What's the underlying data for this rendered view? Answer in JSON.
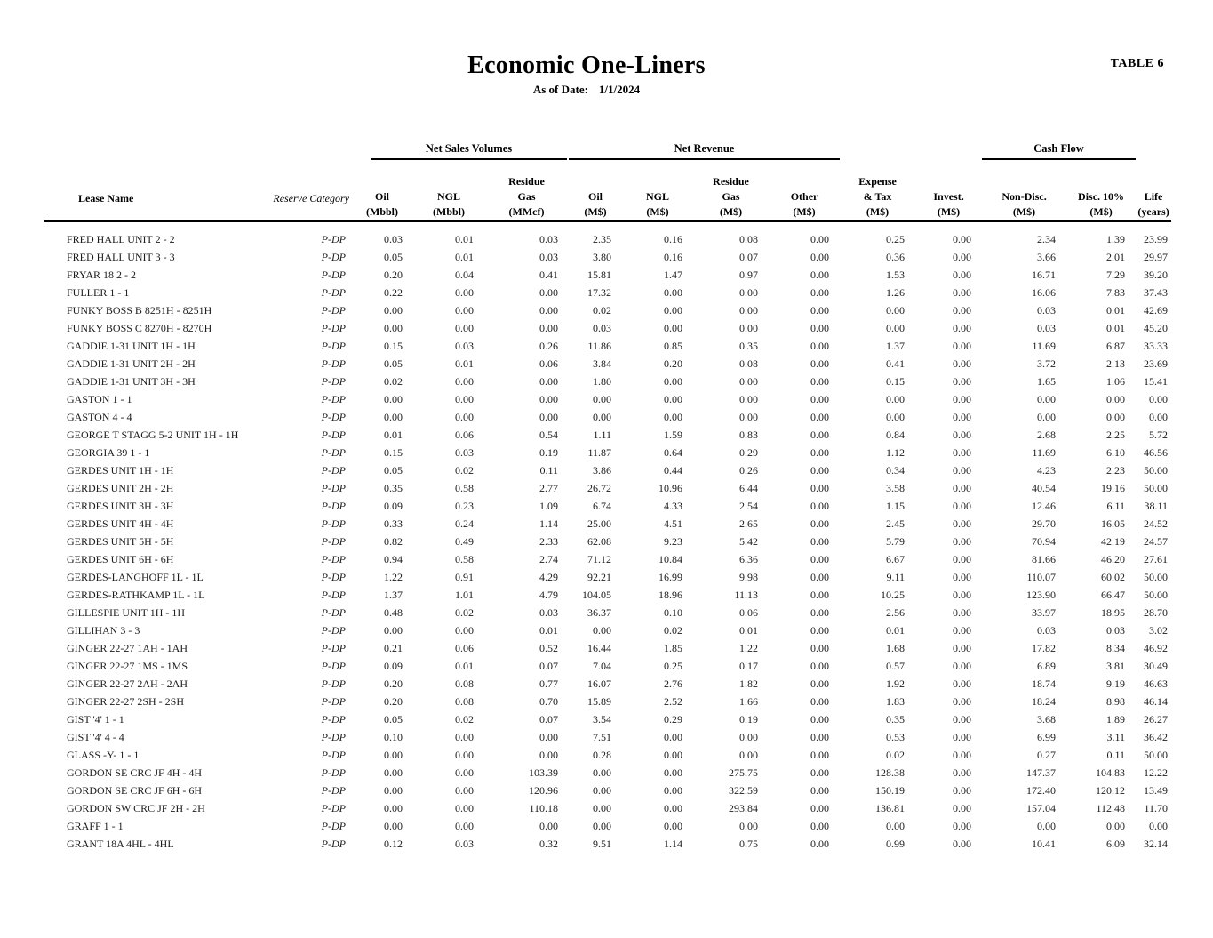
{
  "header": {
    "title": "Economic One-Liners",
    "as_of_label": "As of Date:",
    "as_of_value": "1/1/2024",
    "table_number": "TABLE 6"
  },
  "table": {
    "groups": {
      "net_sales_volumes": "Net Sales Volumes",
      "net_revenue": "Net Revenue",
      "cash_flow": "Cash Flow"
    },
    "columns": [
      {
        "key": "lease_name",
        "lines": [
          "Lease Name"
        ]
      },
      {
        "key": "reserve_category",
        "lines": [
          "Reserve Category"
        ]
      },
      {
        "key": "oil_volume",
        "lines": [
          "Oil",
          "(Mbbl)"
        ]
      },
      {
        "key": "ngl_volume",
        "lines": [
          "NGL",
          "(Mbbl)"
        ]
      },
      {
        "key": "residue_gas_volume",
        "lines": [
          "Residue",
          "Gas",
          "(MMcf)"
        ]
      },
      {
        "key": "oil_revenue",
        "lines": [
          "Oil",
          "(M$)"
        ]
      },
      {
        "key": "ngl_revenue",
        "lines": [
          "NGL",
          "(M$)"
        ]
      },
      {
        "key": "residue_gas_revenue",
        "lines": [
          "Residue",
          "Gas",
          "(M$)"
        ]
      },
      {
        "key": "other_revenue",
        "lines": [
          "Other",
          "(M$)"
        ]
      },
      {
        "key": "expense_tax",
        "lines": [
          "Expense",
          "& Tax",
          "(M$)"
        ]
      },
      {
        "key": "investment",
        "lines": [
          "Invest.",
          "(M$)"
        ]
      },
      {
        "key": "cash_flow_non_disc",
        "lines": [
          "Non-Disc.",
          "(M$)"
        ]
      },
      {
        "key": "cash_flow_disc_10",
        "lines": [
          "Disc. 10%",
          "(M$)"
        ]
      },
      {
        "key": "life",
        "lines": [
          "Life",
          "(years)"
        ]
      }
    ],
    "rows": [
      [
        "FRED HALL UNIT 2 - 2",
        "P-DP",
        "0.03",
        "0.01",
        "0.03",
        "2.35",
        "0.16",
        "0.08",
        "0.00",
        "0.25",
        "0.00",
        "2.34",
        "1.39",
        "23.99"
      ],
      [
        "FRED HALL UNIT 3 - 3",
        "P-DP",
        "0.05",
        "0.01",
        "0.03",
        "3.80",
        "0.16",
        "0.07",
        "0.00",
        "0.36",
        "0.00",
        "3.66",
        "2.01",
        "29.97"
      ],
      [
        "FRYAR 18 2 - 2",
        "P-DP",
        "0.20",
        "0.04",
        "0.41",
        "15.81",
        "1.47",
        "0.97",
        "0.00",
        "1.53",
        "0.00",
        "16.71",
        "7.29",
        "39.20"
      ],
      [
        "FULLER 1 - 1",
        "P-DP",
        "0.22",
        "0.00",
        "0.00",
        "17.32",
        "0.00",
        "0.00",
        "0.00",
        "1.26",
        "0.00",
        "16.06",
        "7.83",
        "37.43"
      ],
      [
        "FUNKY BOSS B 8251H - 8251H",
        "P-DP",
        "0.00",
        "0.00",
        "0.00",
        "0.02",
        "0.00",
        "0.00",
        "0.00",
        "0.00",
        "0.00",
        "0.03",
        "0.01",
        "42.69"
      ],
      [
        "FUNKY BOSS C 8270H - 8270H",
        "P-DP",
        "0.00",
        "0.00",
        "0.00",
        "0.03",
        "0.00",
        "0.00",
        "0.00",
        "0.00",
        "0.00",
        "0.03",
        "0.01",
        "45.20"
      ],
      [
        "GADDIE 1-31 UNIT 1H - 1H",
        "P-DP",
        "0.15",
        "0.03",
        "0.26",
        "11.86",
        "0.85",
        "0.35",
        "0.00",
        "1.37",
        "0.00",
        "11.69",
        "6.87",
        "33.33"
      ],
      [
        "GADDIE 1-31 UNIT 2H - 2H",
        "P-DP",
        "0.05",
        "0.01",
        "0.06",
        "3.84",
        "0.20",
        "0.08",
        "0.00",
        "0.41",
        "0.00",
        "3.72",
        "2.13",
        "23.69"
      ],
      [
        "GADDIE 1-31 UNIT 3H - 3H",
        "P-DP",
        "0.02",
        "0.00",
        "0.00",
        "1.80",
        "0.00",
        "0.00",
        "0.00",
        "0.15",
        "0.00",
        "1.65",
        "1.06",
        "15.41"
      ],
      [
        "GASTON 1 - 1",
        "P-DP",
        "0.00",
        "0.00",
        "0.00",
        "0.00",
        "0.00",
        "0.00",
        "0.00",
        "0.00",
        "0.00",
        "0.00",
        "0.00",
        "0.00"
      ],
      [
        "GASTON 4 - 4",
        "P-DP",
        "0.00",
        "0.00",
        "0.00",
        "0.00",
        "0.00",
        "0.00",
        "0.00",
        "0.00",
        "0.00",
        "0.00",
        "0.00",
        "0.00"
      ],
      [
        "GEORGE T STAGG 5-2 UNIT 1H - 1H",
        "P-DP",
        "0.01",
        "0.06",
        "0.54",
        "1.11",
        "1.59",
        "0.83",
        "0.00",
        "0.84",
        "0.00",
        "2.68",
        "2.25",
        "5.72"
      ],
      [
        "GEORGIA 39 1 - 1",
        "P-DP",
        "0.15",
        "0.03",
        "0.19",
        "11.87",
        "0.64",
        "0.29",
        "0.00",
        "1.12",
        "0.00",
        "11.69",
        "6.10",
        "46.56"
      ],
      [
        "GERDES UNIT 1H - 1H",
        "P-DP",
        "0.05",
        "0.02",
        "0.11",
        "3.86",
        "0.44",
        "0.26",
        "0.00",
        "0.34",
        "0.00",
        "4.23",
        "2.23",
        "50.00"
      ],
      [
        "GERDES UNIT 2H - 2H",
        "P-DP",
        "0.35",
        "0.58",
        "2.77",
        "26.72",
        "10.96",
        "6.44",
        "0.00",
        "3.58",
        "0.00",
        "40.54",
        "19.16",
        "50.00"
      ],
      [
        "GERDES UNIT 3H - 3H",
        "P-DP",
        "0.09",
        "0.23",
        "1.09",
        "6.74",
        "4.33",
        "2.54",
        "0.00",
        "1.15",
        "0.00",
        "12.46",
        "6.11",
        "38.11"
      ],
      [
        "GERDES UNIT 4H - 4H",
        "P-DP",
        "0.33",
        "0.24",
        "1.14",
        "25.00",
        "4.51",
        "2.65",
        "0.00",
        "2.45",
        "0.00",
        "29.70",
        "16.05",
        "24.52"
      ],
      [
        "GERDES UNIT 5H - 5H",
        "P-DP",
        "0.82",
        "0.49",
        "2.33",
        "62.08",
        "9.23",
        "5.42",
        "0.00",
        "5.79",
        "0.00",
        "70.94",
        "42.19",
        "24.57"
      ],
      [
        "GERDES UNIT 6H - 6H",
        "P-DP",
        "0.94",
        "0.58",
        "2.74",
        "71.12",
        "10.84",
        "6.36",
        "0.00",
        "6.67",
        "0.00",
        "81.66",
        "46.20",
        "27.61"
      ],
      [
        "GERDES-LANGHOFF 1L - 1L",
        "P-DP",
        "1.22",
        "0.91",
        "4.29",
        "92.21",
        "16.99",
        "9.98",
        "0.00",
        "9.11",
        "0.00",
        "110.07",
        "60.02",
        "50.00"
      ],
      [
        "GERDES-RATHKAMP 1L - 1L",
        "P-DP",
        "1.37",
        "1.01",
        "4.79",
        "104.05",
        "18.96",
        "11.13",
        "0.00",
        "10.25",
        "0.00",
        "123.90",
        "66.47",
        "50.00"
      ],
      [
        "GILLESPIE UNIT 1H - 1H",
        "P-DP",
        "0.48",
        "0.02",
        "0.03",
        "36.37",
        "0.10",
        "0.06",
        "0.00",
        "2.56",
        "0.00",
        "33.97",
        "18.95",
        "28.70"
      ],
      [
        "GILLIHAN 3 - 3",
        "P-DP",
        "0.00",
        "0.00",
        "0.01",
        "0.00",
        "0.02",
        "0.01",
        "0.00",
        "0.01",
        "0.00",
        "0.03",
        "0.03",
        "3.02"
      ],
      [
        "GINGER 22-27 1AH - 1AH",
        "P-DP",
        "0.21",
        "0.06",
        "0.52",
        "16.44",
        "1.85",
        "1.22",
        "0.00",
        "1.68",
        "0.00",
        "17.82",
        "8.34",
        "46.92"
      ],
      [
        "GINGER 22-27 1MS - 1MS",
        "P-DP",
        "0.09",
        "0.01",
        "0.07",
        "7.04",
        "0.25",
        "0.17",
        "0.00",
        "0.57",
        "0.00",
        "6.89",
        "3.81",
        "30.49"
      ],
      [
        "GINGER 22-27 2AH - 2AH",
        "P-DP",
        "0.20",
        "0.08",
        "0.77",
        "16.07",
        "2.76",
        "1.82",
        "0.00",
        "1.92",
        "0.00",
        "18.74",
        "9.19",
        "46.63"
      ],
      [
        "GINGER 22-27 2SH - 2SH",
        "P-DP",
        "0.20",
        "0.08",
        "0.70",
        "15.89",
        "2.52",
        "1.66",
        "0.00",
        "1.83",
        "0.00",
        "18.24",
        "8.98",
        "46.14"
      ],
      [
        "GIST '4' 1 - 1",
        "P-DP",
        "0.05",
        "0.02",
        "0.07",
        "3.54",
        "0.29",
        "0.19",
        "0.00",
        "0.35",
        "0.00",
        "3.68",
        "1.89",
        "26.27"
      ],
      [
        "GIST '4' 4 - 4",
        "P-DP",
        "0.10",
        "0.00",
        "0.00",
        "7.51",
        "0.00",
        "0.00",
        "0.00",
        "0.53",
        "0.00",
        "6.99",
        "3.11",
        "36.42"
      ],
      [
        "GLASS -Y- 1 - 1",
        "P-DP",
        "0.00",
        "0.00",
        "0.00",
        "0.28",
        "0.00",
        "0.00",
        "0.00",
        "0.02",
        "0.00",
        "0.27",
        "0.11",
        "50.00"
      ],
      [
        "GORDON SE CRC JF 4H - 4H",
        "P-DP",
        "0.00",
        "0.00",
        "103.39",
        "0.00",
        "0.00",
        "275.75",
        "0.00",
        "128.38",
        "0.00",
        "147.37",
        "104.83",
        "12.22"
      ],
      [
        "GORDON SE CRC JF 6H - 6H",
        "P-DP",
        "0.00",
        "0.00",
        "120.96",
        "0.00",
        "0.00",
        "322.59",
        "0.00",
        "150.19",
        "0.00",
        "172.40",
        "120.12",
        "13.49"
      ],
      [
        "GORDON SW CRC JF 2H - 2H",
        "P-DP",
        "0.00",
        "0.00",
        "110.18",
        "0.00",
        "0.00",
        "293.84",
        "0.00",
        "136.81",
        "0.00",
        "157.04",
        "112.48",
        "11.70"
      ],
      [
        "GRAFF 1 - 1",
        "P-DP",
        "0.00",
        "0.00",
        "0.00",
        "0.00",
        "0.00",
        "0.00",
        "0.00",
        "0.00",
        "0.00",
        "0.00",
        "0.00",
        "0.00"
      ],
      [
        "GRANT 18A 4HL - 4HL",
        "P-DP",
        "0.12",
        "0.03",
        "0.32",
        "9.51",
        "1.14",
        "0.75",
        "0.00",
        "0.99",
        "0.00",
        "10.41",
        "6.09",
        "32.14"
      ]
    ]
  }
}
